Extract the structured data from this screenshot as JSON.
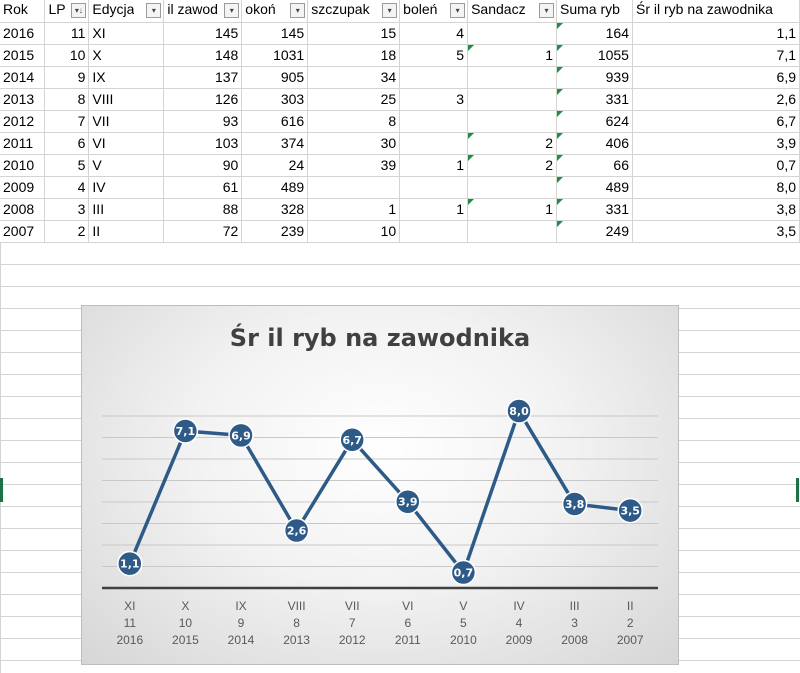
{
  "headers": [
    "Rok",
    "LP",
    "Edycja",
    "il zawod",
    "okoń",
    "szczupak",
    "boleń",
    "Sandacz",
    "Suma ryb",
    "Śr il ryb na zawodnika"
  ],
  "filter_icons": {
    "LP": "sort-desc-filter-icon",
    "default": "dropdown-filter-icon"
  },
  "rows": [
    [
      "2016",
      "11",
      "XI",
      "145",
      "145",
      "15",
      "4",
      "",
      "164",
      "1,1"
    ],
    [
      "2015",
      "10",
      "X",
      "148",
      "1031",
      "18",
      "5",
      "1",
      "1055",
      "7,1"
    ],
    [
      "2014",
      "9",
      "IX",
      "137",
      "905",
      "34",
      "",
      "",
      "939",
      "6,9"
    ],
    [
      "2013",
      "8",
      "VIII",
      "126",
      "303",
      "25",
      "3",
      "",
      "331",
      "2,6"
    ],
    [
      "2012",
      "7",
      "VII",
      "93",
      "616",
      "8",
      "",
      "",
      "624",
      "6,7"
    ],
    [
      "2011",
      "6",
      "VI",
      "103",
      "374",
      "30",
      "",
      "2",
      "406",
      "3,9"
    ],
    [
      "2010",
      "5",
      "V",
      "90",
      "24",
      "39",
      "1",
      "2",
      "66",
      "0,7"
    ],
    [
      "2009",
      "4",
      "IV",
      "61",
      "489",
      "",
      "",
      "",
      "489",
      "8,0"
    ],
    [
      "2008",
      "3",
      "III",
      "88",
      "328",
      "1",
      "1",
      "1",
      "331",
      "3,8"
    ],
    [
      "2007",
      "2",
      "II",
      "72",
      "239",
      "10",
      "",
      "",
      "249",
      "3,5"
    ]
  ],
  "chart_data": {
    "type": "line",
    "title": "Śr il ryb na zawodnika",
    "categories": [
      [
        "XI",
        "11",
        "2016"
      ],
      [
        "X",
        "10",
        "2015"
      ],
      [
        "IX",
        "9",
        "2014"
      ],
      [
        "VIII",
        "8",
        "2013"
      ],
      [
        "VII",
        "7",
        "2012"
      ],
      [
        "VI",
        "6",
        "2011"
      ],
      [
        "V",
        "5",
        "2010"
      ],
      [
        "IV",
        "4",
        "2009"
      ],
      [
        "III",
        "3",
        "2008"
      ],
      [
        "II",
        "2",
        "2007"
      ]
    ],
    "values": [
      1.1,
      7.1,
      6.9,
      2.6,
      6.7,
      3.9,
      0.7,
      8.0,
      3.8,
      3.5
    ],
    "data_labels": [
      "1,1",
      "7,1",
      "6,9",
      "2,6",
      "6,7",
      "3,9",
      "0,7",
      "8,0",
      "3,8",
      "3,5"
    ],
    "line_color": "#2e5a87",
    "marker_color": "#2e5a87",
    "grid": true
  }
}
